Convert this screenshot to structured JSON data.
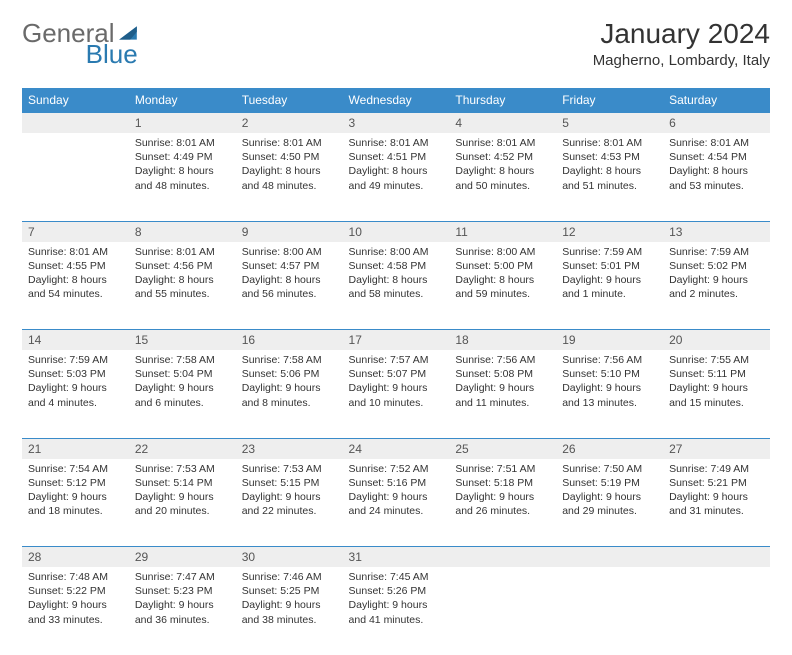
{
  "logo": {
    "part1": "General",
    "part2": "Blue"
  },
  "title": "January 2024",
  "location": "Magherno, Lombardy, Italy",
  "colors": {
    "header_bg": "#3a8bc9",
    "header_fg": "#ffffff",
    "daynum_bg": "#eeeeee",
    "daynum_fg": "#555555",
    "body_fg": "#333333",
    "rule": "#3a8bc9",
    "logo_gray": "#6a6a6a",
    "logo_blue": "#2a7ab0"
  },
  "dayNames": [
    "Sunday",
    "Monday",
    "Tuesday",
    "Wednesday",
    "Thursday",
    "Friday",
    "Saturday"
  ],
  "weeks": [
    [
      {
        "n": "",
        "body": ""
      },
      {
        "n": "1",
        "body": "Sunrise: 8:01 AM\nSunset: 4:49 PM\nDaylight: 8 hours and 48 minutes."
      },
      {
        "n": "2",
        "body": "Sunrise: 8:01 AM\nSunset: 4:50 PM\nDaylight: 8 hours and 48 minutes."
      },
      {
        "n": "3",
        "body": "Sunrise: 8:01 AM\nSunset: 4:51 PM\nDaylight: 8 hours and 49 minutes."
      },
      {
        "n": "4",
        "body": "Sunrise: 8:01 AM\nSunset: 4:52 PM\nDaylight: 8 hours and 50 minutes."
      },
      {
        "n": "5",
        "body": "Sunrise: 8:01 AM\nSunset: 4:53 PM\nDaylight: 8 hours and 51 minutes."
      },
      {
        "n": "6",
        "body": "Sunrise: 8:01 AM\nSunset: 4:54 PM\nDaylight: 8 hours and 53 minutes."
      }
    ],
    [
      {
        "n": "7",
        "body": "Sunrise: 8:01 AM\nSunset: 4:55 PM\nDaylight: 8 hours and 54 minutes."
      },
      {
        "n": "8",
        "body": "Sunrise: 8:01 AM\nSunset: 4:56 PM\nDaylight: 8 hours and 55 minutes."
      },
      {
        "n": "9",
        "body": "Sunrise: 8:00 AM\nSunset: 4:57 PM\nDaylight: 8 hours and 56 minutes."
      },
      {
        "n": "10",
        "body": "Sunrise: 8:00 AM\nSunset: 4:58 PM\nDaylight: 8 hours and 58 minutes."
      },
      {
        "n": "11",
        "body": "Sunrise: 8:00 AM\nSunset: 5:00 PM\nDaylight: 8 hours and 59 minutes."
      },
      {
        "n": "12",
        "body": "Sunrise: 7:59 AM\nSunset: 5:01 PM\nDaylight: 9 hours and 1 minute."
      },
      {
        "n": "13",
        "body": "Sunrise: 7:59 AM\nSunset: 5:02 PM\nDaylight: 9 hours and 2 minutes."
      }
    ],
    [
      {
        "n": "14",
        "body": "Sunrise: 7:59 AM\nSunset: 5:03 PM\nDaylight: 9 hours and 4 minutes."
      },
      {
        "n": "15",
        "body": "Sunrise: 7:58 AM\nSunset: 5:04 PM\nDaylight: 9 hours and 6 minutes."
      },
      {
        "n": "16",
        "body": "Sunrise: 7:58 AM\nSunset: 5:06 PM\nDaylight: 9 hours and 8 minutes."
      },
      {
        "n": "17",
        "body": "Sunrise: 7:57 AM\nSunset: 5:07 PM\nDaylight: 9 hours and 10 minutes."
      },
      {
        "n": "18",
        "body": "Sunrise: 7:56 AM\nSunset: 5:08 PM\nDaylight: 9 hours and 11 minutes."
      },
      {
        "n": "19",
        "body": "Sunrise: 7:56 AM\nSunset: 5:10 PM\nDaylight: 9 hours and 13 minutes."
      },
      {
        "n": "20",
        "body": "Sunrise: 7:55 AM\nSunset: 5:11 PM\nDaylight: 9 hours and 15 minutes."
      }
    ],
    [
      {
        "n": "21",
        "body": "Sunrise: 7:54 AM\nSunset: 5:12 PM\nDaylight: 9 hours and 18 minutes."
      },
      {
        "n": "22",
        "body": "Sunrise: 7:53 AM\nSunset: 5:14 PM\nDaylight: 9 hours and 20 minutes."
      },
      {
        "n": "23",
        "body": "Sunrise: 7:53 AM\nSunset: 5:15 PM\nDaylight: 9 hours and 22 minutes."
      },
      {
        "n": "24",
        "body": "Sunrise: 7:52 AM\nSunset: 5:16 PM\nDaylight: 9 hours and 24 minutes."
      },
      {
        "n": "25",
        "body": "Sunrise: 7:51 AM\nSunset: 5:18 PM\nDaylight: 9 hours and 26 minutes."
      },
      {
        "n": "26",
        "body": "Sunrise: 7:50 AM\nSunset: 5:19 PM\nDaylight: 9 hours and 29 minutes."
      },
      {
        "n": "27",
        "body": "Sunrise: 7:49 AM\nSunset: 5:21 PM\nDaylight: 9 hours and 31 minutes."
      }
    ],
    [
      {
        "n": "28",
        "body": "Sunrise: 7:48 AM\nSunset: 5:22 PM\nDaylight: 9 hours and 33 minutes."
      },
      {
        "n": "29",
        "body": "Sunrise: 7:47 AM\nSunset: 5:23 PM\nDaylight: 9 hours and 36 minutes."
      },
      {
        "n": "30",
        "body": "Sunrise: 7:46 AM\nSunset: 5:25 PM\nDaylight: 9 hours and 38 minutes."
      },
      {
        "n": "31",
        "body": "Sunrise: 7:45 AM\nSunset: 5:26 PM\nDaylight: 9 hours and 41 minutes."
      },
      {
        "n": "",
        "body": ""
      },
      {
        "n": "",
        "body": ""
      },
      {
        "n": "",
        "body": ""
      }
    ]
  ]
}
